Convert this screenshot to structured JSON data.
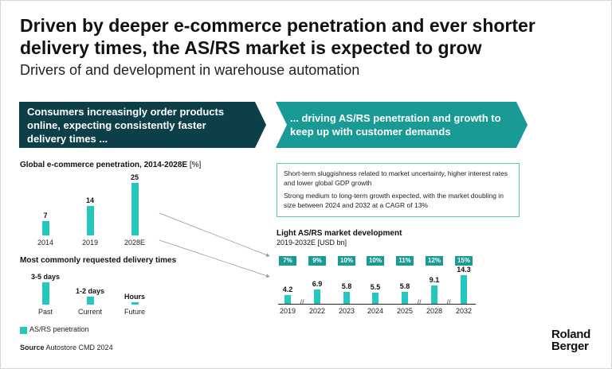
{
  "header": {
    "title": "Driven by deeper e-commerce penetration and ever shorter delivery times, the AS/RS market is expected to grow",
    "subtitle": "Drivers of and development in warehouse automation"
  },
  "banners": {
    "left": "Consumers increasingly order products online, expecting consistently faster delivery times ...",
    "right": "... driving AS/RS penetration and growth to keep up with customer demands"
  },
  "info_box": {
    "line1": "Short-term sluggishness related to market uncertainty, higher interest rates and lower global GDP growth",
    "line2": "Strong medium to long-term growth expected, with the market doubling in size between 2024 and 2032 at a CAGR of 13%"
  },
  "legend": {
    "label": "AS/RS penetration"
  },
  "source": {
    "label": "Source",
    "text": "Autostore CMD 2024"
  },
  "logo": {
    "line1": "Roland",
    "line2": "Berger"
  },
  "colors": {
    "bar": "#23c7bd",
    "dark_teal": "#0c3f48",
    "teal": "#1a9a94"
  },
  "chart_data": [
    {
      "type": "bar",
      "title": "Global e-commerce penetration, 2014-2028E",
      "unit": "[%]",
      "categories": [
        "2014",
        "2019",
        "2028E"
      ],
      "values": [
        7,
        14,
        25
      ],
      "value_labels": [
        "7",
        "14",
        "25"
      ]
    },
    {
      "type": "bar",
      "title": "Most commonly requested delivery times",
      "categories": [
        "Past",
        "Current",
        "Future"
      ],
      "value_labels": [
        "3-5 days",
        "1-2 days",
        "Hours"
      ],
      "values": [
        4,
        1.5,
        0.2
      ]
    },
    {
      "type": "bar",
      "title": "Light AS/RS market development",
      "subtitle": "2019-2032E [USD bn]",
      "categories": [
        "2019",
        "2022",
        "2023",
        "2024",
        "2025",
        "2028",
        "2032"
      ],
      "values": [
        4.2,
        6.9,
        5.8,
        5.5,
        5.8,
        9.1,
        14.3
      ],
      "value_labels": [
        "4.2",
        "6.9",
        "5.8",
        "5.5",
        "5.8",
        "9.1",
        "14.3"
      ],
      "penetration": [
        "7%",
        "9%",
        "10%",
        "10%",
        "11%",
        "12%",
        "15%"
      ]
    }
  ]
}
